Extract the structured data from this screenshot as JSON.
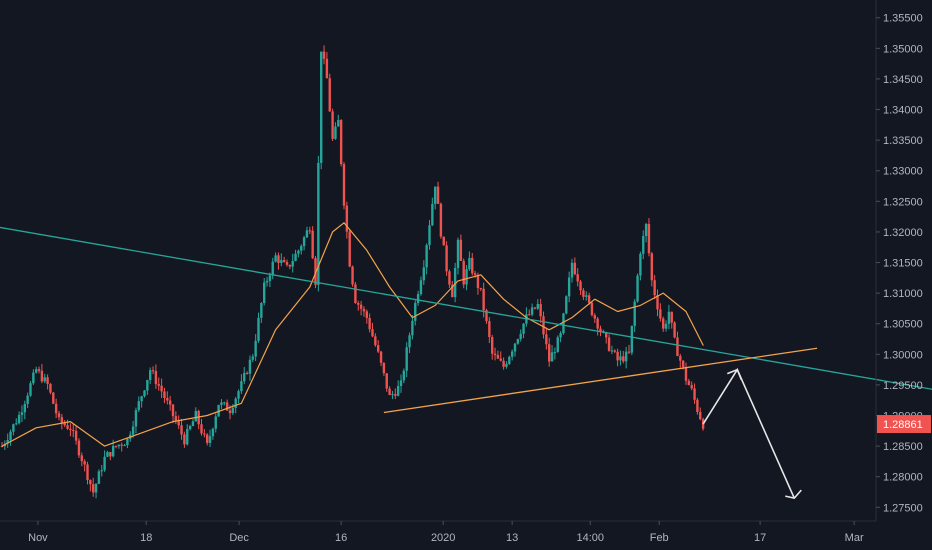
{
  "chart_data": {
    "type": "candlestick",
    "symbol_pair_hint": "",
    "x_ticks": [
      "Nov",
      "18",
      "Dec",
      "16",
      "2020",
      "13",
      "14:00",
      "Feb",
      "17",
      "Mar"
    ],
    "y_ticks": [
      "1.35500",
      "1.35000",
      "1.34500",
      "1.34000",
      "1.33500",
      "1.33000",
      "1.32500",
      "1.32000",
      "1.31500",
      "1.31000",
      "1.30500",
      "1.30000",
      "1.29500",
      "1.29000",
      "1.28500",
      "1.28000",
      "1.27500"
    ],
    "ylim": [
      1.2735,
      1.357
    ],
    "last_price": "1.28861",
    "price_path": [
      {
        "t": 0,
        "p": 1.285
      },
      {
        "t": 3,
        "p": 1.29
      },
      {
        "t": 6,
        "p": 1.2975
      },
      {
        "t": 8,
        "p": 1.295
      },
      {
        "t": 10,
        "p": 1.289
      },
      {
        "t": 12,
        "p": 1.288
      },
      {
        "t": 14,
        "p": 1.283
      },
      {
        "t": 16,
        "p": 1.2775
      },
      {
        "t": 18,
        "p": 1.283
      },
      {
        "t": 20,
        "p": 1.285
      },
      {
        "t": 22,
        "p": 1.286
      },
      {
        "t": 24,
        "p": 1.292
      },
      {
        "t": 26,
        "p": 1.2975
      },
      {
        "t": 28,
        "p": 1.294
      },
      {
        "t": 30,
        "p": 1.29
      },
      {
        "t": 32,
        "p": 1.286
      },
      {
        "t": 34,
        "p": 1.29
      },
      {
        "t": 36,
        "p": 1.285
      },
      {
        "t": 38,
        "p": 1.292
      },
      {
        "t": 40,
        "p": 1.291
      },
      {
        "t": 42,
        "p": 1.295
      },
      {
        "t": 44,
        "p": 1.3
      },
      {
        "t": 46,
        "p": 1.311
      },
      {
        "t": 48,
        "p": 1.316
      },
      {
        "t": 50,
        "p": 1.314
      },
      {
        "t": 52,
        "p": 1.317
      },
      {
        "t": 54,
        "p": 1.321
      },
      {
        "t": 55,
        "p": 1.312
      },
      {
        "t": 56,
        "p": 1.35
      },
      {
        "t": 57,
        "p": 1.345
      },
      {
        "t": 58,
        "p": 1.335
      },
      {
        "t": 59,
        "p": 1.338
      },
      {
        "t": 60,
        "p": 1.325
      },
      {
        "t": 61,
        "p": 1.315
      },
      {
        "t": 62,
        "p": 1.309
      },
      {
        "t": 64,
        "p": 1.306
      },
      {
        "t": 66,
        "p": 1.3
      },
      {
        "t": 68,
        "p": 1.293
      },
      {
        "t": 70,
        "p": 1.295
      },
      {
        "t": 72,
        "p": 1.306
      },
      {
        "t": 74,
        "p": 1.315
      },
      {
        "t": 76,
        "p": 1.328
      },
      {
        "t": 77,
        "p": 1.32
      },
      {
        "t": 78,
        "p": 1.314
      },
      {
        "t": 79,
        "p": 1.31
      },
      {
        "t": 80,
        "p": 1.318
      },
      {
        "t": 81,
        "p": 1.312
      },
      {
        "t": 82,
        "p": 1.315
      },
      {
        "t": 84,
        "p": 1.31
      },
      {
        "t": 86,
        "p": 1.3
      },
      {
        "t": 88,
        "p": 1.298
      },
      {
        "t": 90,
        "p": 1.302
      },
      {
        "t": 92,
        "p": 1.306
      },
      {
        "t": 94,
        "p": 1.308
      },
      {
        "t": 96,
        "p": 1.299
      },
      {
        "t": 98,
        "p": 1.303
      },
      {
        "t": 100,
        "p": 1.315
      },
      {
        "t": 102,
        "p": 1.31
      },
      {
        "t": 104,
        "p": 1.306
      },
      {
        "t": 106,
        "p": 1.302
      },
      {
        "t": 108,
        "p": 1.299
      },
      {
        "t": 110,
        "p": 1.3
      },
      {
        "t": 112,
        "p": 1.317
      },
      {
        "t": 113,
        "p": 1.321
      },
      {
        "t": 114,
        "p": 1.312
      },
      {
        "t": 115,
        "p": 1.308
      },
      {
        "t": 116,
        "p": 1.304
      },
      {
        "t": 117,
        "p": 1.307
      },
      {
        "t": 118,
        "p": 1.302
      },
      {
        "t": 119,
        "p": 1.299
      },
      {
        "t": 120,
        "p": 1.296
      },
      {
        "t": 121,
        "p": 1.294
      },
      {
        "t": 122,
        "p": 1.291
      },
      {
        "t": 123,
        "p": 1.2886
      }
    ],
    "ma_path": [
      {
        "t": 0,
        "p": 1.285
      },
      {
        "t": 6,
        "p": 1.288
      },
      {
        "t": 12,
        "p": 1.289
      },
      {
        "t": 18,
        "p": 1.285
      },
      {
        "t": 24,
        "p": 1.287
      },
      {
        "t": 30,
        "p": 1.289
      },
      {
        "t": 36,
        "p": 1.29
      },
      {
        "t": 42,
        "p": 1.292
      },
      {
        "t": 48,
        "p": 1.304
      },
      {
        "t": 54,
        "p": 1.311
      },
      {
        "t": 58,
        "p": 1.32
      },
      {
        "t": 60,
        "p": 1.3215
      },
      {
        "t": 64,
        "p": 1.317
      },
      {
        "t": 68,
        "p": 1.311
      },
      {
        "t": 72,
        "p": 1.306
      },
      {
        "t": 76,
        "p": 1.308
      },
      {
        "t": 80,
        "p": 1.312
      },
      {
        "t": 84,
        "p": 1.313
      },
      {
        "t": 88,
        "p": 1.309
      },
      {
        "t": 92,
        "p": 1.306
      },
      {
        "t": 96,
        "p": 1.304
      },
      {
        "t": 100,
        "p": 1.306
      },
      {
        "t": 104,
        "p": 1.309
      },
      {
        "t": 108,
        "p": 1.307
      },
      {
        "t": 112,
        "p": 1.308
      },
      {
        "t": 116,
        "p": 1.31
      },
      {
        "t": 120,
        "p": 1.307
      },
      {
        "t": 123,
        "p": 1.3015
      }
    ],
    "trendlines": [
      {
        "name": "descending-line",
        "color": "#26a69a",
        "from": {
          "t": -2,
          "p": 1.321
        },
        "to": {
          "t": 165,
          "p": 1.294
        }
      },
      {
        "name": "ascending-line",
        "color": "#f5a34a",
        "from": {
          "t": 67,
          "p": 1.2905
        },
        "to": {
          "t": 143,
          "p": 1.301
        }
      }
    ],
    "projection_arrow": [
      {
        "t": 123,
        "p": 1.2886
      },
      {
        "t": 129,
        "p": 1.2975
      },
      {
        "t": 139,
        "p": 1.2765
      }
    ],
    "colors": {
      "background": "#131722",
      "up": "#26a69a",
      "down": "#ef5350",
      "ma": "#f5a34a",
      "grid": "#1e222d",
      "axis_text": "#b2b5be",
      "price_label": "#f05350",
      "arrow": "#e6e6e6"
    },
    "grid": false,
    "legend": "none"
  }
}
